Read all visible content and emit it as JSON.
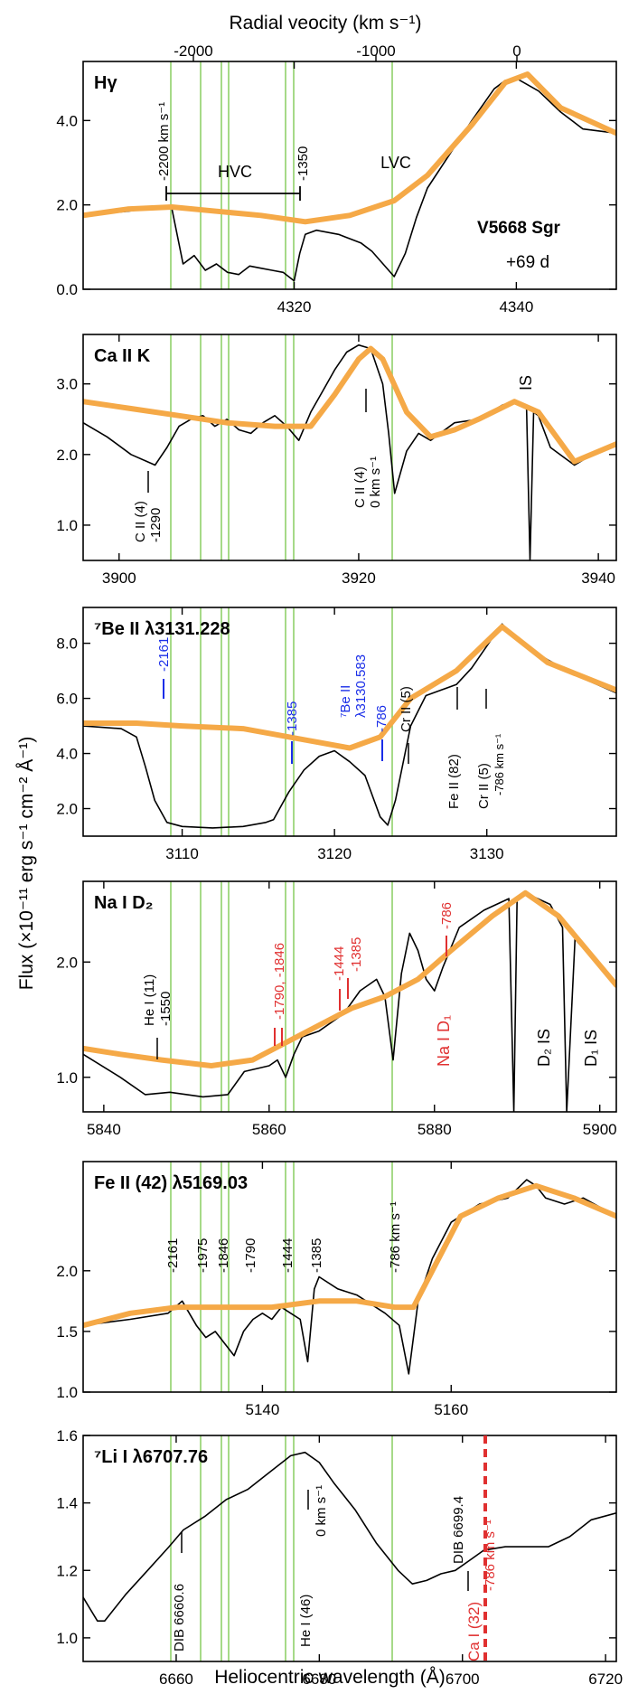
{
  "figure": {
    "top_axis_title": "Radial veocity (km s⁻¹)",
    "bottom_axis_title": "Heliocentric wavelength (Å)",
    "y_axis_title": "Flux (×10⁻¹¹ erg s⁻¹ cm⁻² Å⁻¹)",
    "top_ticks": [
      "-2000",
      "-1000",
      "0"
    ],
    "star_name": "V5668 Sgr",
    "epoch": "+69 d",
    "colors": {
      "observed": "#000000",
      "fit": "#f5a947",
      "velocity_lines": "#8fd16a",
      "blue": "#1a2ee8",
      "red": "#e03030"
    },
    "velocity_markers_kms": [
      -2200,
      -1975,
      -1846,
      -1790,
      -1444,
      -1385,
      -786
    ]
  },
  "chart_data": [
    {
      "type": "line",
      "title": "Hγ",
      "xlim": [
        4301,
        4349
      ],
      "ylim": [
        0,
        5.4
      ],
      "xticks": [
        "4320",
        "4340"
      ],
      "yticks": [
        "0.0",
        "2.0",
        "4.0"
      ],
      "series": [
        {
          "role": "observed",
          "x": [
            4301,
            4305,
            4308,
            4309,
            4310,
            4311,
            4312,
            4313,
            4314,
            4315,
            4316,
            4317,
            4318,
            4319,
            4320,
            4320.5,
            4321,
            4322,
            4324,
            4326,
            4327,
            4328,
            4329,
            4330,
            4331,
            4332,
            4334,
            4336,
            4338,
            4339,
            4340,
            4342,
            4344,
            4346,
            4349
          ],
          "y": [
            1.75,
            1.85,
            1.95,
            1.9,
            0.6,
            0.8,
            0.45,
            0.6,
            0.4,
            0.35,
            0.55,
            0.5,
            0.45,
            0.4,
            0.2,
            0.85,
            1.3,
            1.4,
            1.3,
            1.1,
            0.9,
            0.6,
            0.3,
            0.85,
            1.7,
            2.4,
            3.2,
            4.0,
            4.75,
            4.95,
            5.0,
            4.7,
            4.2,
            3.8,
            3.7
          ]
        },
        {
          "role": "fit",
          "x": [
            4301,
            4305,
            4309,
            4313,
            4317,
            4321,
            4325,
            4329,
            4332,
            4336,
            4339,
            4341,
            4344,
            4349
          ],
          "y": [
            1.75,
            1.9,
            1.95,
            1.85,
            1.75,
            1.6,
            1.75,
            2.1,
            2.7,
            3.9,
            4.9,
            5.1,
            4.3,
            3.7
          ]
        }
      ]
    },
    {
      "type": "line",
      "title": "Ca II K",
      "xlim": [
        3897,
        3941.5
      ],
      "ylim": [
        0.5,
        3.7
      ],
      "xticks": [
        "3900",
        "3920",
        "3940"
      ],
      "yticks": [
        "1.0",
        "2.0",
        "3.0"
      ],
      "series": [
        {
          "role": "observed",
          "x": [
            3897,
            3899,
            3901,
            3903,
            3904,
            3905,
            3906,
            3907,
            3908,
            3909,
            3910,
            3911,
            3912,
            3913,
            3914,
            3915,
            3916,
            3917,
            3918,
            3919,
            3920,
            3921,
            3922,
            3922.5,
            3923,
            3924,
            3925,
            3926,
            3928,
            3930,
            3932,
            3933,
            3934,
            3934.3,
            3934.6,
            3935,
            3936,
            3938,
            3940,
            3941.5
          ],
          "y": [
            2.45,
            2.25,
            2.0,
            1.85,
            2.1,
            2.4,
            2.5,
            2.55,
            2.4,
            2.5,
            2.35,
            2.3,
            2.45,
            2.55,
            2.4,
            2.2,
            2.6,
            2.9,
            3.2,
            3.45,
            3.55,
            3.5,
            3.0,
            2.3,
            1.45,
            2.05,
            2.3,
            2.2,
            2.45,
            2.5,
            2.7,
            2.75,
            2.7,
            0.5,
            2.6,
            2.55,
            2.1,
            1.85,
            2.05,
            2.15
          ]
        },
        {
          "role": "fit",
          "x": [
            3897,
            3901,
            3905,
            3909,
            3913,
            3916,
            3918,
            3920,
            3921,
            3922,
            3924,
            3926,
            3928,
            3930,
            3933,
            3935,
            3938,
            3941.5
          ],
          "y": [
            2.75,
            2.65,
            2.55,
            2.45,
            2.4,
            2.4,
            2.85,
            3.35,
            3.5,
            3.35,
            2.6,
            2.25,
            2.35,
            2.5,
            2.75,
            2.6,
            1.9,
            2.15
          ]
        }
      ]
    },
    {
      "type": "line",
      "title": "⁷Be II λ3131.228",
      "xlim": [
        3103.5,
        3138.5
      ],
      "ylim": [
        1.0,
        9.3
      ],
      "xticks": [
        "3110",
        "3120",
        "3130"
      ],
      "yticks": [
        "2.0",
        "4.0",
        "6.0",
        "8.0"
      ],
      "series": [
        {
          "role": "observed",
          "x": [
            3103.5,
            3106,
            3107,
            3107.6,
            3108.2,
            3109,
            3110,
            3112,
            3114,
            3115.5,
            3116,
            3116.5,
            3117,
            3118,
            3119,
            3120,
            3121,
            3122,
            3123,
            3123.5,
            3124,
            3125,
            3126,
            3127,
            3128,
            3129,
            3130,
            3131,
            3132,
            3134,
            3136,
            3138.5
          ],
          "y": [
            5.0,
            4.9,
            4.6,
            3.5,
            2.3,
            1.5,
            1.35,
            1.3,
            1.35,
            1.5,
            1.6,
            2.1,
            2.6,
            3.4,
            3.9,
            4.1,
            3.7,
            3.2,
            1.7,
            1.4,
            2.3,
            5.0,
            6.1,
            6.3,
            6.5,
            7.1,
            7.9,
            8.7,
            8.1,
            7.4,
            6.8,
            6.2
          ]
        },
        {
          "role": "fit",
          "x": [
            3103.5,
            3107,
            3110,
            3114,
            3118,
            3121,
            3123,
            3125,
            3128,
            3131,
            3134,
            3138.5
          ],
          "y": [
            5.1,
            5.1,
            5.0,
            4.9,
            4.5,
            4.2,
            4.6,
            6.0,
            7.0,
            8.6,
            7.3,
            6.3
          ]
        }
      ]
    },
    {
      "type": "line",
      "title": "Na I D₂",
      "xlim": [
        5837.5,
        5902
      ],
      "ylim": [
        0.7,
        2.7
      ],
      "xticks": [
        "5840",
        "5860",
        "5880",
        "5900"
      ],
      "yticks": [
        "1.0",
        "2.0"
      ],
      "series": [
        {
          "role": "observed",
          "x": [
            5837.5,
            5842,
            5845,
            5848,
            5852,
            5855,
            5857,
            5860,
            5861,
            5862,
            5863,
            5864,
            5866,
            5869,
            5871,
            5873,
            5874,
            5875,
            5876,
            5877,
            5878,
            5879,
            5880,
            5881,
            5883,
            5886,
            5889,
            5889.6,
            5890,
            5891,
            5894,
            5895.5,
            5896,
            5897,
            5902
          ],
          "y": [
            1.2,
            1.0,
            0.85,
            0.87,
            0.83,
            0.85,
            1.05,
            1.1,
            1.15,
            1.0,
            1.2,
            1.35,
            1.4,
            1.55,
            1.75,
            1.85,
            1.7,
            1.15,
            1.9,
            2.25,
            2.1,
            1.85,
            1.75,
            1.95,
            2.3,
            2.45,
            2.55,
            0.7,
            2.55,
            2.6,
            2.5,
            2.3,
            0.7,
            2.2,
            1.8
          ]
        },
        {
          "role": "fit",
          "x": [
            5837.5,
            5842,
            5847,
            5853,
            5858,
            5862,
            5866,
            5870,
            5874,
            5878,
            5882,
            5887,
            5891,
            5895,
            5902
          ],
          "y": [
            1.25,
            1.2,
            1.15,
            1.1,
            1.15,
            1.3,
            1.45,
            1.6,
            1.7,
            1.85,
            2.1,
            2.4,
            2.6,
            2.4,
            1.8
          ]
        }
      ]
    },
    {
      "type": "line",
      "title": "Fe II (42) λ5169.03",
      "xlim": [
        5121,
        5177.5
      ],
      "ylim": [
        1.0,
        2.9
      ],
      "xticks": [
        "5140",
        "5160"
      ],
      "yticks": [
        "1.0",
        "1.5",
        "2.0"
      ],
      "series": [
        {
          "role": "observed",
          "x": [
            5121,
            5126,
            5130,
            5131.5,
            5133,
            5134,
            5135,
            5136,
            5137,
            5138,
            5139,
            5140,
            5141,
            5142,
            5143,
            5144,
            5144.8,
            5145.5,
            5146,
            5148,
            5150,
            5153,
            5154.5,
            5155.5,
            5156.5,
            5158,
            5160,
            5163,
            5166,
            5168,
            5169,
            5170,
            5172,
            5174,
            5177.5
          ],
          "y": [
            1.55,
            1.6,
            1.65,
            1.75,
            1.55,
            1.45,
            1.5,
            1.4,
            1.3,
            1.5,
            1.6,
            1.65,
            1.6,
            1.7,
            1.65,
            1.6,
            1.25,
            1.85,
            1.95,
            1.85,
            1.8,
            1.65,
            1.55,
            1.15,
            1.75,
            2.1,
            2.4,
            2.55,
            2.6,
            2.75,
            2.7,
            2.6,
            2.55,
            2.6,
            2.45
          ]
        },
        {
          "role": "fit",
          "x": [
            5121,
            5126,
            5131,
            5136,
            5141,
            5146,
            5150,
            5154,
            5156,
            5158,
            5161,
            5165,
            5169,
            5173,
            5177.5
          ],
          "y": [
            1.55,
            1.65,
            1.7,
            1.7,
            1.7,
            1.75,
            1.75,
            1.7,
            1.7,
            2.0,
            2.45,
            2.6,
            2.7,
            2.6,
            2.45
          ]
        }
      ]
    },
    {
      "type": "line",
      "title": "⁷Li I λ6707.76",
      "xlim": [
        6647,
        6721.5
      ],
      "ylim": [
        0.93,
        1.6
      ],
      "xticks": [
        "6660",
        "6680",
        "6700",
        "6720"
      ],
      "yticks": [
        "1.0",
        "1.2",
        "1.4",
        "1.6"
      ],
      "series": [
        {
          "role": "observed",
          "x": [
            6647,
            6649,
            6650,
            6653,
            6656,
            6659,
            6661,
            6664,
            6667,
            6670,
            6673,
            6676,
            6678,
            6680,
            6682,
            6685,
            6688,
            6691,
            6693,
            6695,
            6697,
            6699,
            6701,
            6703,
            6706,
            6709,
            6712,
            6715,
            6718,
            6721.5
          ],
          "y": [
            1.12,
            1.05,
            1.05,
            1.13,
            1.2,
            1.27,
            1.32,
            1.36,
            1.41,
            1.44,
            1.49,
            1.54,
            1.55,
            1.52,
            1.46,
            1.38,
            1.28,
            1.2,
            1.16,
            1.17,
            1.19,
            1.2,
            1.23,
            1.26,
            1.27,
            1.27,
            1.27,
            1.3,
            1.35,
            1.37
          ]
        }
      ]
    }
  ],
  "annotations": {
    "hg": {
      "hvc": "HVC",
      "lvc": "LVC",
      "v2200": "-2200 km s⁻¹",
      "v1350": "-1350"
    },
    "cak": {
      "cii_a": "C II (4)",
      "cii_a_v": "-1290",
      "cii_b": "C II (4)",
      "cii_b_v": "0 km s⁻¹",
      "is": "IS"
    },
    "be": {
      "v2161": "-2161",
      "v1385": "-1385",
      "be_line": "⁷Be II",
      "be_wl": "λ3130.583",
      "v786": "-786",
      "crii_a": "Cr II (5)",
      "feii": "Fe II (82)",
      "crii_b": "Cr II (5)",
      "crii_b_v": "-786 km s⁻¹"
    },
    "na": {
      "hei": "He I (11)",
      "hei_v": "-1550",
      "v1790": "-1790, -1846",
      "v1444": "-1444",
      "v1385": "-1385",
      "v786": "-786",
      "nad1": "Na I D₁",
      "d2is": "D₂ IS",
      "d1is": "D₁ IS"
    },
    "fe": {
      "v2161": "-2161",
      "v1975": "-1975",
      "v1846": "-1846",
      "v1790": "-1790",
      "v1444": "-1444",
      "v1385": "-1385",
      "v786": "-786 km s⁻¹"
    },
    "li": {
      "dib1": "DIB 6660.6",
      "hei": "He I (46)",
      "hei_v": "0 km s⁻¹",
      "dib2": "DIB 6699.4",
      "cai": "Ca I (32)",
      "cai_v": "-786 km s⁻¹"
    }
  }
}
